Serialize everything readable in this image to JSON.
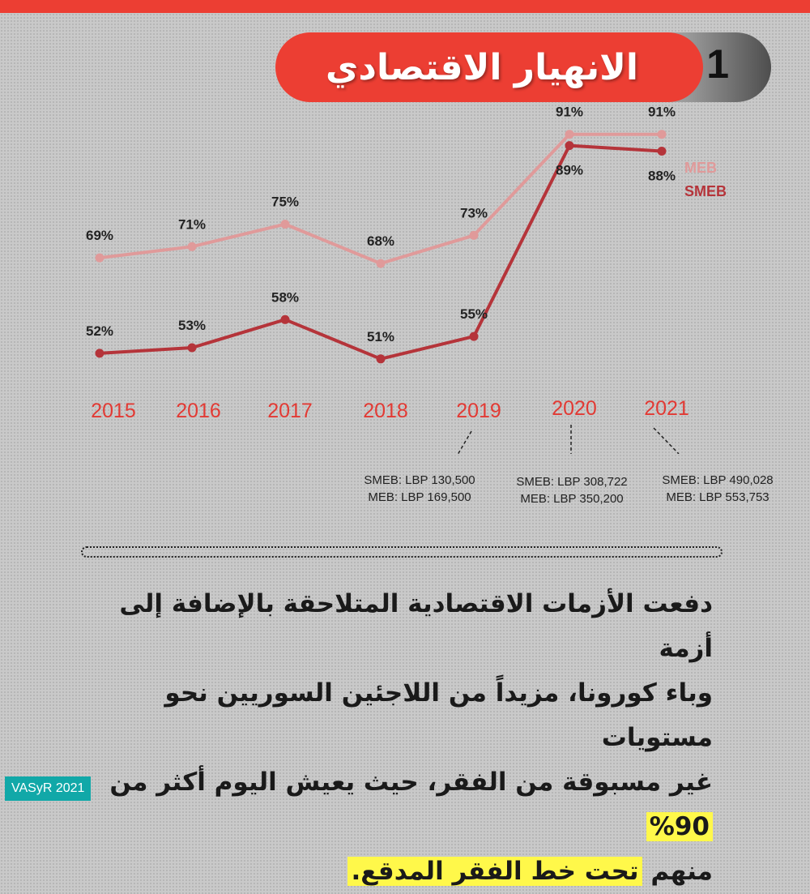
{
  "section": {
    "number": "1",
    "title": "الانهيار الاقتصادي"
  },
  "chart_data": {
    "type": "line",
    "categories": [
      "2015",
      "2016",
      "2017",
      "2018",
      "2019",
      "2020",
      "2021"
    ],
    "series": [
      {
        "name": "MEB",
        "values": [
          69,
          71,
          75,
          68,
          73,
          91,
          91
        ],
        "labels": [
          "69%",
          "71%",
          "75%",
          "68%",
          "73%",
          "91%",
          "91%"
        ],
        "color": "#e09a9a"
      },
      {
        "name": "SMEB",
        "values": [
          52,
          53,
          58,
          51,
          55,
          89,
          88
        ],
        "labels": [
          "52%",
          "53%",
          "58%",
          "51%",
          "55%",
          "89%",
          "88%"
        ],
        "color": "#b5343a"
      }
    ],
    "category_color": "#e23a34",
    "ylim": [
      40,
      100
    ],
    "grid": false,
    "legend_position": "right",
    "title": "",
    "xlabel": "",
    "ylabel": ""
  },
  "price_notes": [
    {
      "year": "2019",
      "smeb": "SMEB: LBP 130,500",
      "meb": "MEB: LBP 169,500"
    },
    {
      "year": "2020",
      "smeb": "SMEB: LBP 308,722",
      "meb": "MEB: LBP 350,200"
    },
    {
      "year": "2021",
      "smeb": "SMEB: LBP 490,028",
      "meb": "MEB: LBP 553,753"
    }
  ],
  "paragraph": {
    "line1": "دفعت الأزمات الاقتصادية المتلاحقة بالإضافة إلى أزمة",
    "line2": "وباء كورونا، مزيداً من اللاجئين السوريين نحو مستويات",
    "line3_text": "غير مسبوقة من الفقر، حيث يعيش اليوم أكثر من",
    "line3_highlight": "90%",
    "line4_text": "منهم",
    "line4_highlight": "تحت خط الفقر المدقع."
  },
  "colors": {
    "accent": "#ec3e33",
    "highlight": "#fff84a",
    "badge": "#11a8a8"
  },
  "footer": {
    "badge": "VASyR 2021"
  }
}
